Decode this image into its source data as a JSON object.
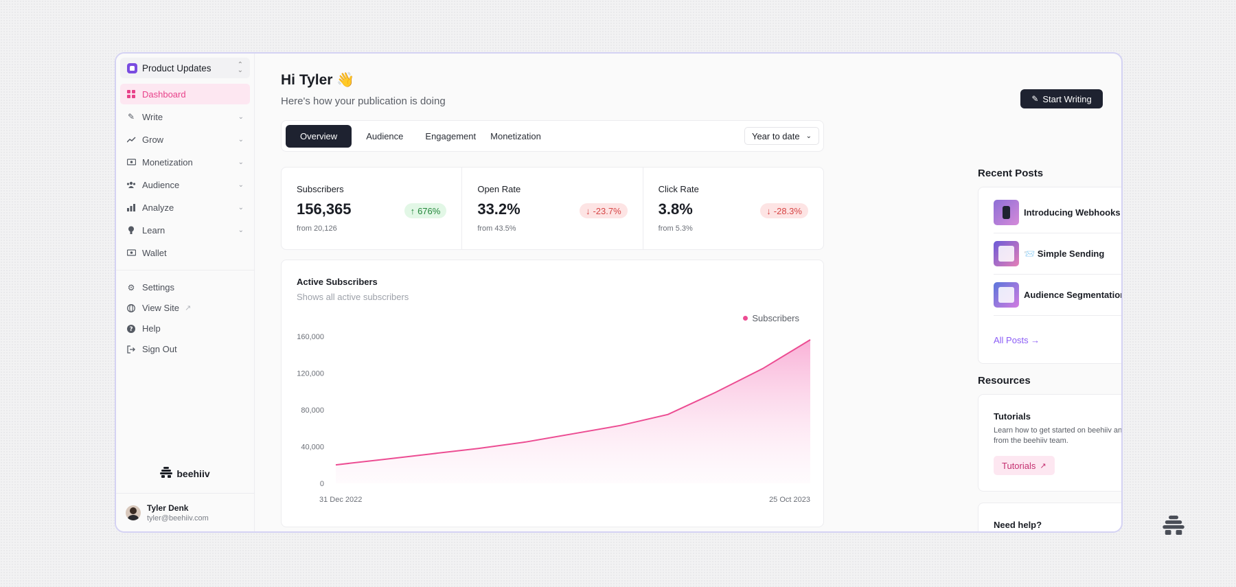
{
  "sidebar": {
    "publication": "Product Updates",
    "nav": [
      {
        "label": "Dashboard",
        "icon": "grid-icon",
        "active": true
      },
      {
        "label": "Write",
        "icon": "pen-icon",
        "chevron": true
      },
      {
        "label": "Grow",
        "icon": "trend-icon",
        "chevron": true
      },
      {
        "label": "Monetization",
        "icon": "money-icon",
        "chevron": true
      },
      {
        "label": "Audience",
        "icon": "users-icon",
        "chevron": true
      },
      {
        "label": "Analyze",
        "icon": "bar-chart-icon",
        "chevron": true
      },
      {
        "label": "Learn",
        "icon": "bulb-icon",
        "chevron": true
      },
      {
        "label": "Wallet",
        "icon": "wallet-icon"
      }
    ],
    "secondary": [
      {
        "label": "Settings",
        "icon": "gear-icon"
      },
      {
        "label": "View Site",
        "icon": "globe-icon"
      },
      {
        "label": "Help",
        "icon": "help-icon"
      },
      {
        "label": "Sign Out",
        "icon": "sign-out-icon"
      }
    ],
    "brand": "beehiiv",
    "user": {
      "name": "Tyler Denk",
      "email": "tyler@beehiiv.com"
    }
  },
  "header": {
    "greeting": "Hi Tyler 👋",
    "subtitle": "Here's how your publication is doing",
    "start_writing": "Start Writing"
  },
  "tabs": {
    "items": [
      "Overview",
      "Audience",
      "Engagement",
      "Monetization"
    ],
    "active": "Overview",
    "period": "Year to date"
  },
  "stats": [
    {
      "label": "Subscribers",
      "value": "156,365",
      "from": "from 20,126",
      "change": "676%",
      "direction": "up"
    },
    {
      "label": "Open Rate",
      "value": "33.2%",
      "from": "from 43.5%",
      "change": "-23.7%",
      "direction": "down"
    },
    {
      "label": "Click Rate",
      "value": "3.8%",
      "from": "from 5.3%",
      "change": "-28.3%",
      "direction": "down"
    }
  ],
  "chart": {
    "title": "Active Subscribers",
    "subtitle": "Shows all active subscribers",
    "legend": "Subscribers",
    "start_label": "31 Dec 2022",
    "end_label": "25 Oct 2023"
  },
  "chart_data": {
    "type": "area",
    "title": "Active Subscribers",
    "subtitle": "Shows all active subscribers",
    "x": [
      "31 Dec 2022",
      "2023-01-31",
      "2023-02-28",
      "2023-03-31",
      "2023-04-30",
      "2023-05-31",
      "2023-06-30",
      "2023-07-31",
      "2023-08-31",
      "2023-09-30",
      "25 Oct 2023"
    ],
    "series": [
      {
        "name": "Subscribers",
        "values": [
          20126,
          26000,
          32000,
          38000,
          45000,
          54000,
          63000,
          75000,
          99000,
          125000,
          156365
        ]
      }
    ],
    "yticks": [
      0,
      40000,
      80000,
      120000,
      160000
    ],
    "ytick_labels": [
      "0",
      "40,000",
      "80,000",
      "120,000",
      "160,000"
    ],
    "ylim": [
      0,
      160000
    ],
    "color": "#ec4c92"
  },
  "recent_posts": {
    "heading": "Recent Posts",
    "items": [
      "Introducing Webhooks",
      "📨 Simple Sending",
      "Audience Segmentation, Reimagined"
    ],
    "all_posts": "All Posts →"
  },
  "resources": {
    "heading": "Resources",
    "title": "Tutorials",
    "description": "Learn how to get started on beehiiv and utilize all our features, directly from the beehiiv team.",
    "button": "Tutorials"
  },
  "help": {
    "title": "Need help?"
  },
  "colors": {
    "accent": "#ec4c92",
    "dark": "#1e2230",
    "link": "#8b5cf6"
  }
}
